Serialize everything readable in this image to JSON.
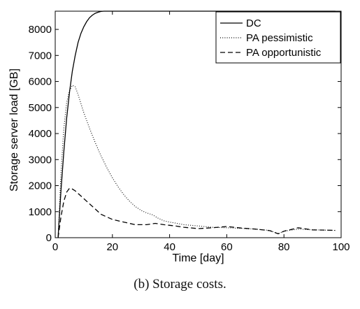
{
  "caption": "(b) Storage costs.",
  "chart_data": {
    "type": "line",
    "title": "",
    "xlabel": "Time [day]",
    "ylabel": "Storage server load [GB]",
    "xlim": [
      0,
      100
    ],
    "ylim": [
      0,
      8700
    ],
    "xticks": [
      0,
      20,
      40,
      60,
      80,
      100
    ],
    "yticks": [
      0,
      1000,
      2000,
      3000,
      4000,
      5000,
      6000,
      7000,
      8000
    ],
    "legend_position": "top-right",
    "grid": false,
    "series": [
      {
        "name": "DC",
        "style": "solid",
        "color": "#000000",
        "x": [
          1,
          2,
          3,
          4,
          5,
          6,
          7,
          8,
          9,
          10,
          11,
          12,
          13,
          14,
          15,
          16,
          17,
          18,
          20,
          25,
          30,
          40,
          50,
          60,
          70,
          80,
          90,
          98
        ],
        "y": [
          0,
          1800,
          3300,
          4600,
          5600,
          6400,
          7000,
          7500,
          7850,
          8100,
          8300,
          8450,
          8550,
          8620,
          8660,
          8690,
          8700,
          8700,
          8700,
          8700,
          8700,
          8700,
          8700,
          8700,
          8700,
          8700,
          8700,
          8700
        ]
      },
      {
        "name": "PA pessimistic",
        "style": "dotted",
        "color": "#000000",
        "x": [
          1,
          2,
          3,
          4,
          5,
          6,
          7,
          8,
          9,
          10,
          12,
          14,
          16,
          18,
          20,
          22,
          24,
          26,
          28,
          30,
          32,
          34,
          36,
          38,
          40,
          42,
          45,
          50,
          55,
          60,
          65,
          70,
          75,
          78,
          80,
          85,
          90,
          95,
          98
        ],
        "y": [
          0,
          2500,
          4200,
          5200,
          5650,
          5850,
          5800,
          5500,
          5150,
          4800,
          4200,
          3650,
          3150,
          2700,
          2300,
          1950,
          1650,
          1400,
          1200,
          1050,
          950,
          880,
          750,
          650,
          600,
          560,
          500,
          450,
          400,
          380,
          360,
          330,
          280,
          150,
          250,
          330,
          300,
          290,
          280
        ]
      },
      {
        "name": "PA opportunistic",
        "style": "dashed",
        "color": "#000000",
        "x": [
          1,
          2,
          3,
          4,
          5,
          6,
          7,
          8,
          10,
          12,
          14,
          16,
          18,
          20,
          24,
          28,
          32,
          35,
          38,
          42,
          45,
          50,
          55,
          60,
          65,
          70,
          75,
          78,
          80,
          85,
          90,
          95,
          98
        ],
        "y": [
          0,
          800,
          1400,
          1750,
          1900,
          1870,
          1800,
          1700,
          1500,
          1300,
          1100,
          900,
          800,
          700,
          600,
          500,
          500,
          550,
          500,
          450,
          400,
          350,
          380,
          430,
          370,
          330,
          270,
          150,
          250,
          380,
          300,
          290,
          280
        ]
      }
    ]
  }
}
